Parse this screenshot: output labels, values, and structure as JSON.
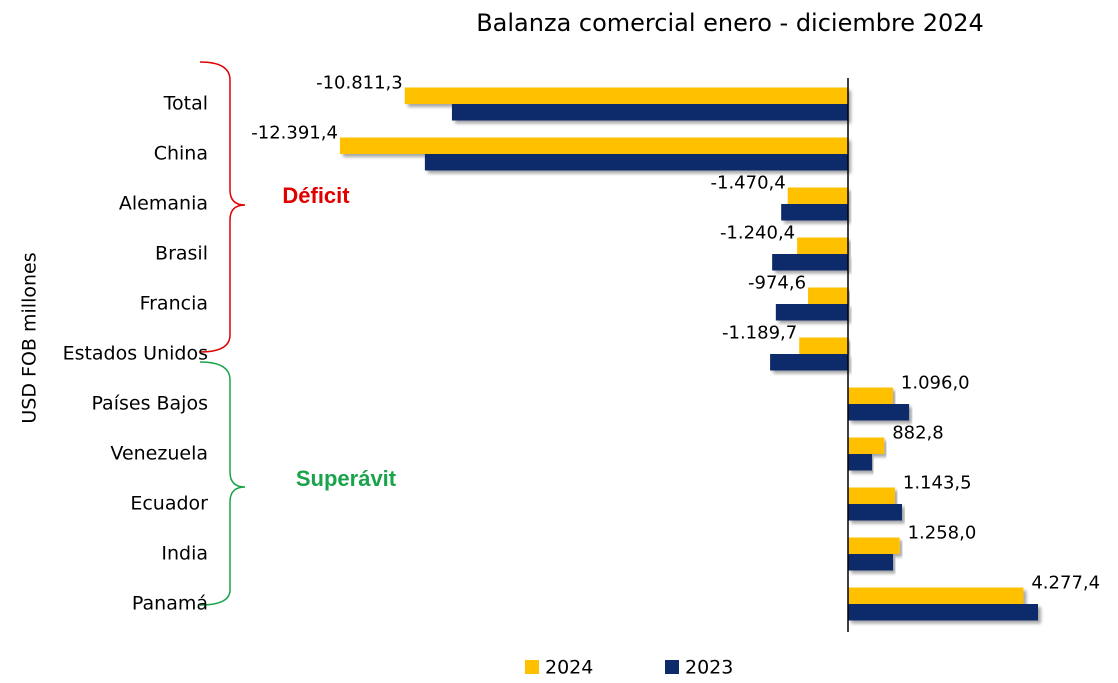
{
  "chart_data": {
    "type": "bar",
    "orientation": "horizontal",
    "title": "Balanza comercial enero - diciembre 2024",
    "y_label": "USD FOB millones",
    "annotations": [
      "Déficit",
      "Superávit"
    ],
    "categories": [
      "Total",
      "China",
      "Alemania",
      "Brasil",
      "Francia",
      "Estados Unidos",
      "Países Bajos",
      "Venezuela",
      "Ecuador",
      "India",
      "Panamá"
    ],
    "series": [
      {
        "name": "2024",
        "color": "#ffc000",
        "values": [
          -10811.3,
          -12391.4,
          -1470.4,
          -1240.4,
          -974.6,
          -1189.7,
          1096.0,
          882.8,
          1143.5,
          1258.0,
          4277.4
        ],
        "value_labels": [
          "-10.811,3",
          "-12.391,4",
          "-1.470,4",
          "-1.240,4",
          "-974,6",
          "-1.189,7",
          "1.096,0",
          "882,8",
          "1.143,5",
          "1.258,0",
          "4.277,4"
        ]
      },
      {
        "name": "2023",
        "color": "#0d2a6b",
        "values": [
          -9660,
          -10320,
          -1630,
          -1850,
          -1760,
          -1900,
          1490,
          585,
          1317,
          1098,
          4634
        ]
      }
    ],
    "xlim": [
      -15000,
      5000
    ],
    "legend": "bottom"
  }
}
